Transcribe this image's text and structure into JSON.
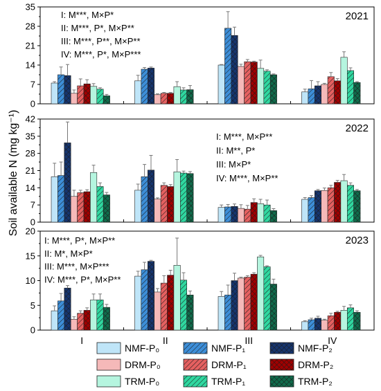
{
  "chart_data": [
    {
      "type": "bar",
      "year": "2021",
      "ylim": [
        0,
        35
      ],
      "yticks": [
        "0",
        "7",
        "14",
        "21",
        "28",
        "35"
      ],
      "annotations": [
        "I: M***, M×P*",
        "II: M***, P*, M×P**",
        "III: M***, P**, M×P**",
        "IV: M***, P*, M×P***"
      ],
      "categories": [
        "I",
        "II",
        "III",
        "IV"
      ],
      "values": [
        [
          7.5,
          10.5,
          10.2,
          3.8,
          6.5,
          7.2,
          6.3,
          5.3,
          2.9
        ],
        [
          8.3,
          12.5,
          12.9,
          3.3,
          3.8,
          3.8,
          6.2,
          5.0,
          5.1
        ],
        [
          14.0,
          27.3,
          24.7,
          13.5,
          15.2,
          15.1,
          12.8,
          11.8,
          10.5
        ],
        [
          4.3,
          5.4,
          6.5,
          7.0,
          9.8,
          8.3,
          16.8,
          12.0,
          7.7
        ]
      ],
      "errors": [
        [
          0.5,
          2.8,
          4.0,
          1.2,
          2.5,
          1.5,
          1.0,
          0.5,
          0.5
        ],
        [
          2.0,
          0.6,
          0.4,
          0.3,
          0.3,
          0.3,
          1.8,
          0.8,
          1.5
        ],
        [
          0.2,
          6.0,
          3.0,
          0.8,
          0.8,
          0.3,
          3.0,
          0.5,
          0.3
        ],
        [
          1.0,
          3.0,
          1.5,
          0.4,
          1.5,
          0.8,
          2.0,
          1.0,
          0.3
        ]
      ]
    },
    {
      "type": "bar",
      "year": "2022",
      "ylim": [
        0,
        42
      ],
      "yticks": [
        "0",
        "7",
        "14",
        "21",
        "28",
        "35",
        "42"
      ],
      "annotations": [
        "I: M***, M×P**",
        "II: M**, P*",
        "III: M×P*",
        "IV: M***, M×P**"
      ],
      "categories": [
        "I",
        "II",
        "III",
        "IV"
      ],
      "values": [
        [
          18.5,
          19.0,
          32.3,
          10.5,
          12.0,
          12.4,
          20.2,
          14.5,
          11.1
        ],
        [
          13.0,
          18.5,
          21.2,
          9.4,
          15.0,
          14.5,
          20.5,
          20.0,
          19.8
        ],
        [
          6.0,
          6.2,
          6.4,
          5.6,
          5.3,
          8.0,
          7.5,
          7.0,
          4.7
        ],
        [
          9.3,
          10.0,
          12.8,
          12.9,
          14.0,
          16.2,
          16.9,
          15.0,
          12.8
        ]
      ],
      "errors": [
        [
          5.5,
          5.5,
          8.5,
          2.5,
          1.0,
          0.8,
          3.0,
          1.5,
          1.0
        ],
        [
          2.5,
          5.0,
          6.0,
          0.5,
          1.0,
          0.8,
          5.0,
          0.8,
          0.8
        ],
        [
          1.0,
          1.0,
          1.0,
          1.5,
          1.5,
          1.5,
          1.8,
          2.0,
          0.8
        ],
        [
          0.7,
          0.8,
          0.5,
          1.0,
          1.0,
          0.8,
          2.5,
          1.0,
          0.5
        ]
      ]
    },
    {
      "type": "bar",
      "year": "2023",
      "ylim": [
        0,
        20
      ],
      "yticks": [
        "0",
        "5",
        "10",
        "15",
        "20"
      ],
      "annotations": [
        "I: M***, P*, M×P**",
        "II: M*, M×P*",
        "III: M***, M×P***",
        "IV: M***, P*, M×P**"
      ],
      "categories": [
        "I",
        "II",
        "III",
        "IV"
      ],
      "values": [
        [
          3.9,
          5.9,
          8.5,
          2.2,
          3.4,
          4.0,
          6.1,
          6.1,
          4.6
        ],
        [
          10.9,
          12.2,
          13.9,
          7.7,
          9.5,
          11.1,
          13.1,
          10.1,
          7.1
        ],
        [
          6.8,
          7.1,
          10.0,
          10.5,
          10.7,
          11.3,
          14.8,
          12.8,
          9.3
        ],
        [
          1.7,
          2.1,
          2.4,
          2.0,
          2.9,
          3.6,
          4.0,
          4.5,
          3.6
        ]
      ],
      "errors": [
        [
          1.0,
          1.5,
          0.5,
          0.5,
          0.5,
          0.5,
          1.2,
          1.2,
          0.6
        ],
        [
          1.0,
          1.5,
          0.2,
          0.7,
          1.5,
          1.0,
          5.5,
          1.5,
          0.8
        ],
        [
          1.0,
          2.0,
          1.5,
          0.2,
          0.3,
          0.3,
          0.3,
          0.2,
          1.0
        ],
        [
          0.2,
          0.3,
          0.4,
          0.2,
          0.5,
          0.2,
          0.8,
          0.6,
          0.3
        ]
      ]
    }
  ],
  "ylabel": "Soil available N (mg kg⁻¹)",
  "legend": [
    {
      "label": "NMF-P₀",
      "fill": "#bfe5f8",
      "pattern": "none"
    },
    {
      "label": "NMF-P₁",
      "fill": "#3d8ed8",
      "pattern": "hatch"
    },
    {
      "label": "NMF-P₂",
      "fill": "#16356e",
      "pattern": "cross"
    },
    {
      "label": "DRM-P₀",
      "fill": "#f5b9b9",
      "pattern": "none"
    },
    {
      "label": "DRM-P₁",
      "fill": "#e56060",
      "pattern": "hatch"
    },
    {
      "label": "DRM-P₂",
      "fill": "#a00000",
      "pattern": "cross"
    },
    {
      "label": "TRM-P₀",
      "fill": "#b5f5df",
      "pattern": "none"
    },
    {
      "label": "TRM-P₁",
      "fill": "#2fd8a0",
      "pattern": "hatch"
    },
    {
      "label": "TRM-P₂",
      "fill": "#106b4b",
      "pattern": "cross"
    }
  ]
}
